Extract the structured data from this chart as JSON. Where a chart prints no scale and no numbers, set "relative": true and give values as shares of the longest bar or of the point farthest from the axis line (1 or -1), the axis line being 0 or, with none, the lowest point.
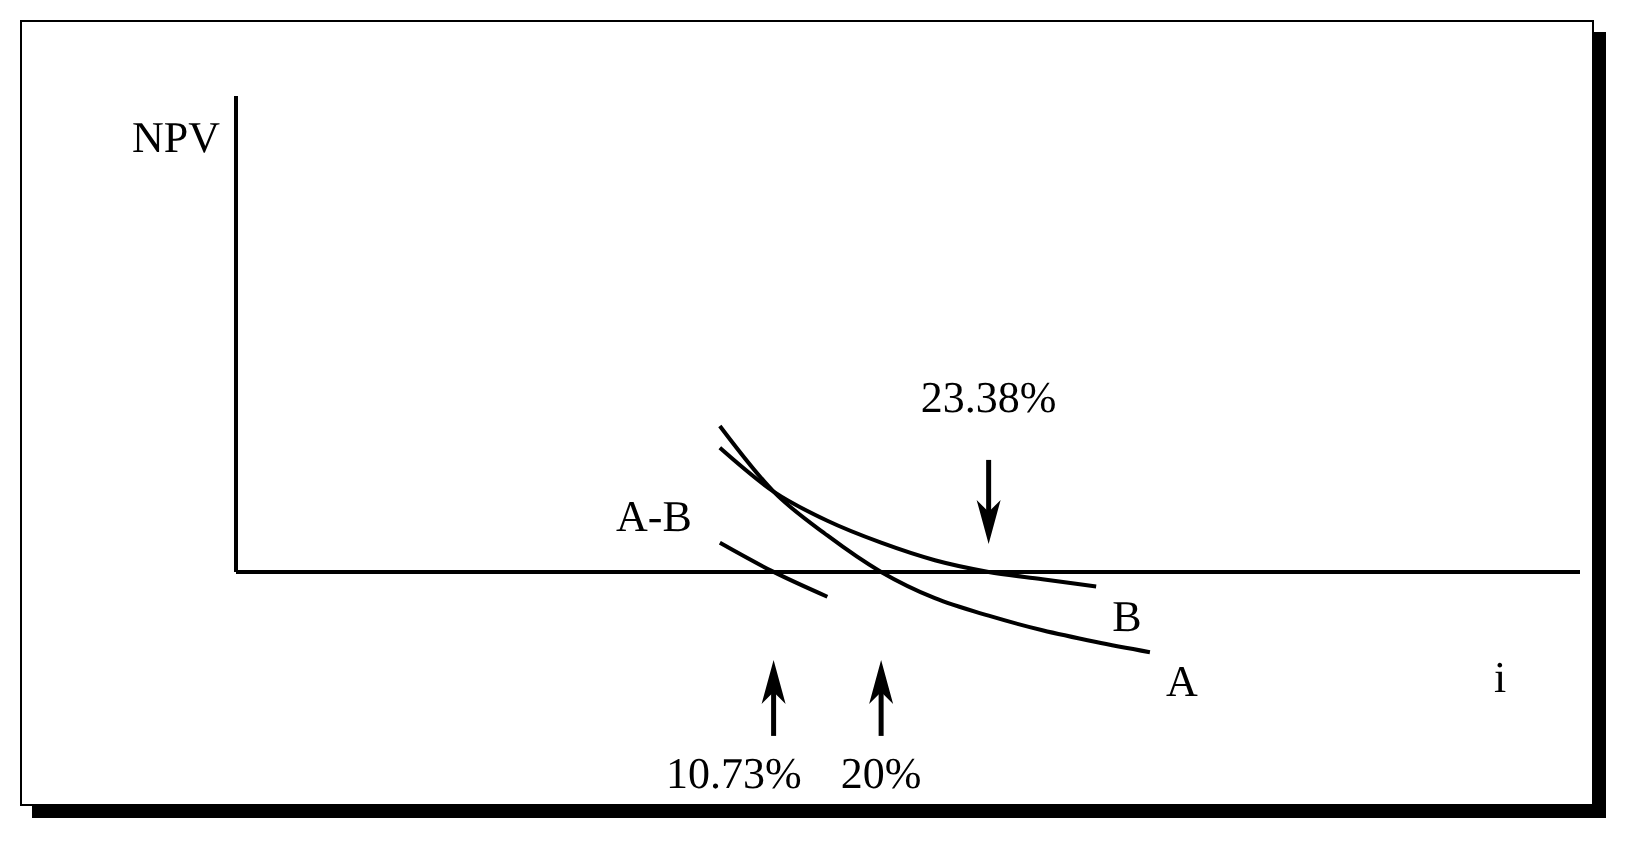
{
  "chart_data": {
    "type": "line",
    "relative": true,
    "xlabel": "i",
    "marker": "none",
    "line_style": "solid",
    "categories": [
      null,
      null,
      null,
      null,
      null,
      null,
      null,
      null,
      null,
      null,
      null,
      null,
      null,
      null,
      null,
      null,
      null,
      null,
      null,
      null,
      null,
      null,
      null,
      null,
      null,
      null
    ],
    "series": [
      {
        "name": "A",
        "color": "#000000",
        "values": [
          null,
          null,
          null,
          null,
          null,
          null,
          null,
          null,
          null,
          1,
          0.55,
          0.25,
          0,
          -0.18,
          -0.3,
          -0.4,
          -0.48,
          -0.55,
          null,
          null,
          null,
          null,
          null,
          null,
          null,
          null
        ]
      },
      {
        "name": "B",
        "color": "#000000",
        "values": [
          null,
          null,
          null,
          null,
          null,
          null,
          null,
          null,
          null,
          0.85,
          0.55,
          0.35,
          0.2,
          0.08,
          0,
          -0.05,
          -0.1,
          null,
          null,
          null,
          null,
          null,
          null,
          null,
          null,
          null
        ]
      },
      {
        "name": "A-B",
        "color": "#000000",
        "values": [
          null,
          null,
          null,
          null,
          null,
          null,
          null,
          null,
          null,
          0.2,
          0,
          -0.17,
          null,
          null,
          null,
          null,
          null,
          null,
          null,
          null,
          null,
          null,
          null,
          null,
          null,
          null
        ]
      }
    ],
    "annotations": [
      "10.73%",
      "20%",
      "23.38%",
      "NPV"
    ]
  }
}
